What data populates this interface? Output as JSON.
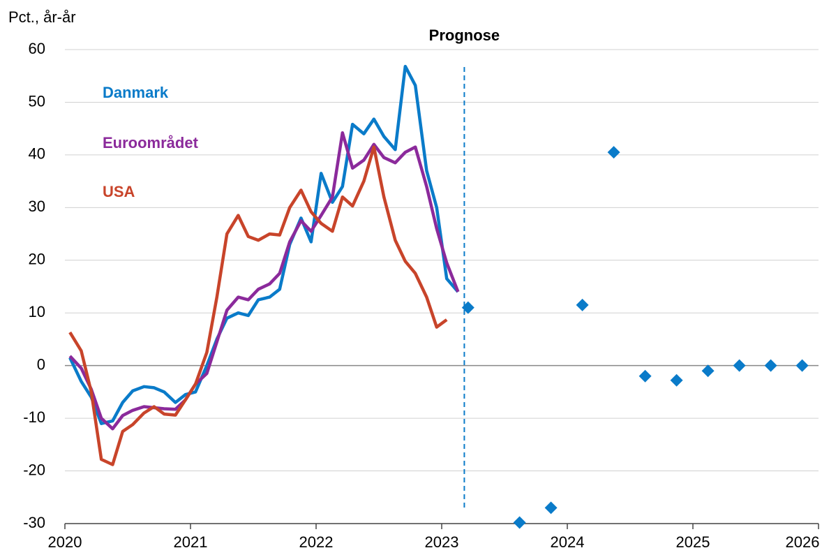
{
  "chart_data": {
    "type": "line",
    "y_label": "Pct., år-år",
    "annotation": "Prognose",
    "forecast_start": 2023.18,
    "x": [
      2020.04,
      2020.13,
      2020.21,
      2020.29,
      2020.38,
      2020.46,
      2020.54,
      2020.63,
      2020.71,
      2020.79,
      2020.88,
      2020.96,
      2021.04,
      2021.13,
      2021.21,
      2021.29,
      2021.38,
      2021.46,
      2021.54,
      2021.63,
      2021.71,
      2021.79,
      2021.88,
      2021.96,
      2022.04,
      2022.13,
      2022.21,
      2022.29,
      2022.38,
      2022.46,
      2022.54,
      2022.63,
      2022.71,
      2022.79,
      2022.88,
      2022.96,
      2023.04,
      2023.13
    ],
    "series": [
      {
        "name": "Danmark",
        "color": "#0a7bc9",
        "values": [
          1.5,
          -3,
          -6,
          -11,
          -10.5,
          -7,
          -4.8,
          -4,
          -4.2,
          -5,
          -7,
          -5.5,
          -5,
          0,
          5,
          9,
          10,
          9.5,
          12.5,
          13,
          14.5,
          23,
          28,
          23.5,
          36.5,
          31,
          34,
          45.8,
          44,
          46.8,
          43.5,
          41,
          56.8,
          53.2,
          37,
          30,
          16.5,
          14
        ]
      },
      {
        "name": "Euroområdet",
        "color": "#8b2a9b",
        "values": [
          1.8,
          -0.5,
          -4.5,
          -10,
          -12,
          -9.5,
          -8.5,
          -7.8,
          -8,
          -8.2,
          -8.3,
          -6.5,
          -3.5,
          -1.5,
          4.5,
          10.5,
          13,
          12.5,
          14.5,
          15.5,
          17.5,
          23.5,
          27.5,
          25.5,
          28.5,
          32,
          44.2,
          37.5,
          39,
          42,
          39.5,
          38.5,
          40.5,
          41.5,
          34,
          26,
          19.5,
          14
        ]
      },
      {
        "name": "USA",
        "color": "#c8442a",
        "values": [
          6.3,
          2.8,
          -5,
          -17.8,
          -18.8,
          -12.5,
          -11.2,
          -9,
          -7.8,
          -9.2,
          -9.4,
          -6.5,
          -3.5,
          2.5,
          13,
          25,
          28.5,
          24.5,
          23.8,
          25,
          24.8,
          30,
          33.3,
          29.2,
          27,
          25.5,
          32,
          30.3,
          35,
          41.5,
          32,
          23.8,
          19.8,
          17.5,
          13,
          7.3,
          8.7,
          null
        ]
      }
    ],
    "forecast": {
      "color": "#0a7bc9",
      "x": [
        2023.21,
        2023.62,
        2023.87,
        2024.12,
        2024.37,
        2024.62,
        2024.87,
        2025.12,
        2025.37,
        2025.62,
        2025.87
      ],
      "values": [
        11,
        -29.8,
        -27,
        11.5,
        40.5,
        -2,
        -2.8,
        -1,
        0,
        0,
        0
      ]
    },
    "xlim": [
      2020,
      2026
    ],
    "xticks": [
      2020,
      2021,
      2022,
      2023,
      2024,
      2025,
      2026
    ],
    "ylim": [
      -30,
      60
    ],
    "yticks": [
      -30,
      -20,
      -10,
      0,
      10,
      20,
      30,
      40,
      50,
      60
    ],
    "grid": true
  }
}
